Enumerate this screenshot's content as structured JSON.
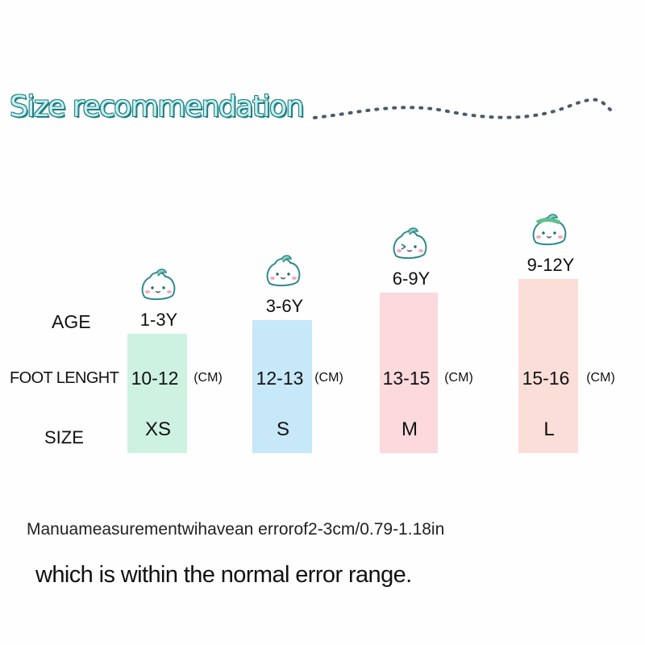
{
  "title": "Size recommendation",
  "row_labels": {
    "age": "AGE",
    "foot_length": "FOOT LENGHT",
    "size": "SIZE"
  },
  "unit": "(CM)",
  "colors": {
    "XS": "#cdf2e2",
    "S": "#c7e8f8",
    "M": "#fbd9dc",
    "L": "#fcded8",
    "title_fill": "#c9eeec",
    "title_outline": "#1c7f84"
  },
  "chart_data": {
    "type": "bar",
    "categories": [
      "XS",
      "S",
      "M",
      "L"
    ],
    "age": [
      "1-3Y",
      "3-6Y",
      "6-9Y",
      "9-12Y"
    ],
    "foot_length_cm": [
      "10-12",
      "12-13",
      "13-15",
      "15-16"
    ],
    "series": [
      {
        "values": [
          12,
          13,
          15,
          16
        ]
      }
    ],
    "title": "Size recommendation"
  },
  "note": "Manuameasurementwihavean errorof2-3cm/0.79-1.18in",
  "note2": "which is within the normal error range."
}
